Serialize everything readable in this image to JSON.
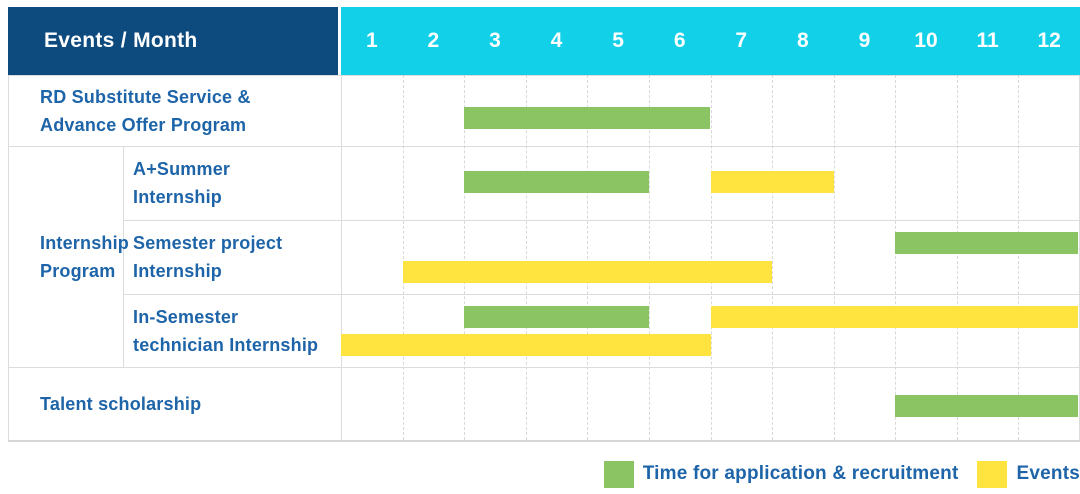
{
  "header": {
    "title": "Events / Month",
    "months": [
      "1",
      "2",
      "3",
      "4",
      "5",
      "6",
      "7",
      "8",
      "9",
      "10",
      "11",
      "12"
    ]
  },
  "labels": {
    "rd": {
      "line1": "RD Substitute Service &",
      "line2": "Advance Offer Program"
    },
    "group_internship": {
      "line1": "Internship",
      "line2": "Program"
    },
    "a_plus_summer": {
      "line1": "A+Summer",
      "line2": "Internship"
    },
    "semester_project": {
      "line1": "Semester project",
      "line2": "Internship"
    },
    "in_semester": {
      "line1": "In-Semester",
      "line2": "technician Internship"
    },
    "talent": {
      "line1": "Talent scholarship"
    }
  },
  "legend": {
    "items": [
      {
        "name": "application",
        "label": "Time for application & recruitment",
        "color": "#8bc563"
      },
      {
        "name": "events",
        "label": "Events",
        "color": "#ffe33e"
      }
    ]
  },
  "colors": {
    "header_navy": "#0d4a7d",
    "header_cyan": "#12d0e7",
    "label_blue": "#1d64a8",
    "application_green": "#8bc563",
    "events_yellow": "#ffe33e",
    "grid_line": "#dcdcdc"
  },
  "chart_data": {
    "type": "bar",
    "subtype": "gantt",
    "title": "Events / Month",
    "xlabel": "Month",
    "x_ticks": [
      1,
      2,
      3,
      4,
      5,
      6,
      7,
      8,
      9,
      10,
      11,
      12
    ],
    "x_range": [
      1,
      12
    ],
    "legend_position": "bottom-right",
    "grid": "dashed-monthly-columns",
    "series_kinds": [
      {
        "kind": "application",
        "label": "Time for application & recruitment",
        "color": "#8bc563"
      },
      {
        "kind": "events",
        "label": "Events",
        "color": "#ffe33e"
      }
    ],
    "rows": [
      {
        "label": "RD Substitute Service & Advance Offer Program",
        "group": null,
        "bars": [
          {
            "kind": "application",
            "start_month": 3,
            "end_month": 6,
            "lane": "single"
          }
        ]
      },
      {
        "label": "A+Summer Internship",
        "group": "Internship Program",
        "bars": [
          {
            "kind": "application",
            "start_month": 3,
            "end_month": 5,
            "lane": "single"
          },
          {
            "kind": "events",
            "start_month": 7,
            "end_month": 8,
            "lane": "single"
          }
        ]
      },
      {
        "label": "Semester project Internship",
        "group": "Internship Program",
        "bars": [
          {
            "kind": "application",
            "start_month": 10,
            "end_month": 12,
            "lane": "upper"
          },
          {
            "kind": "events",
            "start_month": 2,
            "end_month": 7,
            "lane": "lower"
          }
        ]
      },
      {
        "label": "In-Semester technician Internship",
        "group": "Internship Program",
        "bars": [
          {
            "kind": "application",
            "start_month": 3,
            "end_month": 5,
            "lane": "upper"
          },
          {
            "kind": "events",
            "start_month": 7,
            "end_month": 12,
            "lane": "upper"
          },
          {
            "kind": "events",
            "start_month": 1,
            "end_month": 6,
            "lane": "lower"
          }
        ]
      },
      {
        "label": "Talent scholarship",
        "group": null,
        "bars": [
          {
            "kind": "application",
            "start_month": 10,
            "end_month": 12,
            "lane": "single"
          }
        ]
      }
    ]
  }
}
